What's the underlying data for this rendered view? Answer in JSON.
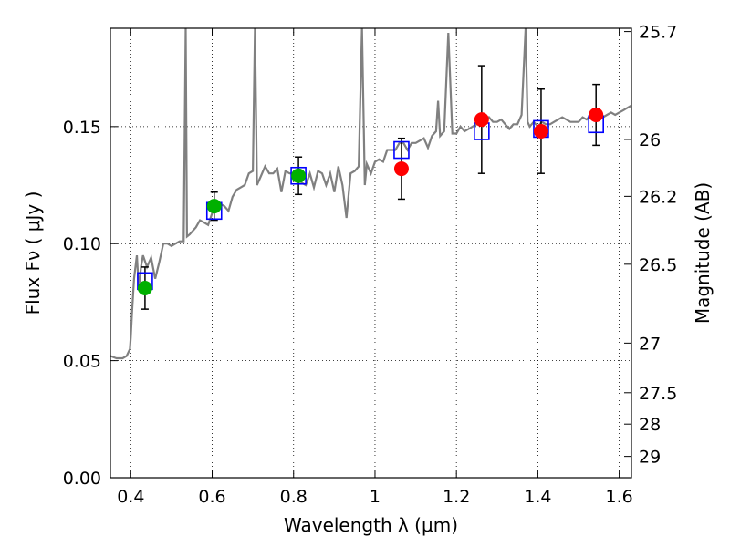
{
  "chart_data": {
    "type": "scatter",
    "title": "",
    "xlabel": "Wavelength  λ (μm)",
    "ylabel": "Flux  Fν  ( μJy )",
    "y2label": "Magnitude (AB)",
    "xlim": [
      0.35,
      1.63
    ],
    "ylim": [
      0.0,
      0.192
    ],
    "xticks": [
      0.4,
      0.6,
      0.8,
      1.0,
      1.2,
      1.4,
      1.6
    ],
    "xtick_labels": [
      "0.4",
      "0.6",
      "0.8",
      "1",
      "1.2",
      "1.4",
      "1.6"
    ],
    "yticks": [
      0.0,
      0.05,
      0.1,
      0.15
    ],
    "ytick_labels": [
      "0.00",
      "0.05",
      "0.10",
      "0.15"
    ],
    "y2ticks": [
      {
        "label": "25.7",
        "flux": 0.1906
      },
      {
        "label": "26",
        "flux": 0.1445
      },
      {
        "label": "26.2",
        "flux": 0.1202
      },
      {
        "label": "26.5",
        "flux": 0.0912
      },
      {
        "label": "27",
        "flux": 0.0575
      },
      {
        "label": "27.5",
        "flux": 0.0363
      },
      {
        "label": "28",
        "flux": 0.0229
      },
      {
        "label": "29",
        "flux": 0.0091
      }
    ],
    "grid": true,
    "colors": {
      "template": "#808080",
      "model": "#0000ff",
      "green": "#00b000",
      "red": "#ff0000",
      "errorbar": "#000000"
    },
    "series": [
      {
        "kind": "line",
        "x": [
          0.35,
          0.365,
          0.38,
          0.39,
          0.398,
          0.4,
          0.403,
          0.408,
          0.415,
          0.42,
          0.425,
          0.43,
          0.44,
          0.45,
          0.46,
          0.47,
          0.48,
          0.49,
          0.5,
          0.51,
          0.52,
          0.53,
          0.535,
          0.538,
          0.545,
          0.55,
          0.56,
          0.57,
          0.58,
          0.59,
          0.6,
          0.61,
          0.62,
          0.63,
          0.64,
          0.65,
          0.66,
          0.67,
          0.68,
          0.69,
          0.7,
          0.705,
          0.71,
          0.72,
          0.73,
          0.74,
          0.75,
          0.76,
          0.77,
          0.78,
          0.79,
          0.8,
          0.81,
          0.82,
          0.83,
          0.84,
          0.85,
          0.86,
          0.87,
          0.88,
          0.89,
          0.9,
          0.91,
          0.92,
          0.93,
          0.94,
          0.95,
          0.96,
          0.968,
          0.975,
          0.98,
          0.99,
          1.0,
          1.01,
          1.02,
          1.03,
          1.04,
          1.05,
          1.06,
          1.07,
          1.08,
          1.09,
          1.1,
          1.11,
          1.12,
          1.13,
          1.14,
          1.15,
          1.155,
          1.16,
          1.17,
          1.18,
          1.19,
          1.2,
          1.21,
          1.22,
          1.23,
          1.24,
          1.25,
          1.26,
          1.27,
          1.28,
          1.29,
          1.3,
          1.31,
          1.32,
          1.33,
          1.34,
          1.35,
          1.36,
          1.37,
          1.375,
          1.38,
          1.39,
          1.4,
          1.41,
          1.42,
          1.43,
          1.44,
          1.45,
          1.46,
          1.47,
          1.48,
          1.49,
          1.5,
          1.51,
          1.52,
          1.53,
          1.54,
          1.55,
          1.56,
          1.57,
          1.58,
          1.59,
          1.6,
          1.61,
          1.62,
          1.63
        ],
        "y": [
          0.052,
          0.051,
          0.051,
          0.052,
          0.055,
          0.06,
          0.07,
          0.085,
          0.095,
          0.08,
          0.09,
          0.095,
          0.09,
          0.094,
          0.085,
          0.092,
          0.1,
          0.1,
          0.099,
          0.1,
          0.101,
          0.101,
          0.192,
          0.103,
          0.104,
          0.105,
          0.107,
          0.11,
          0.109,
          0.108,
          0.113,
          0.116,
          0.117,
          0.116,
          0.114,
          0.12,
          0.123,
          0.124,
          0.125,
          0.13,
          0.131,
          0.192,
          0.125,
          0.129,
          0.133,
          0.13,
          0.13,
          0.132,
          0.122,
          0.131,
          0.13,
          0.13,
          0.13,
          0.126,
          0.125,
          0.13,
          0.124,
          0.131,
          0.13,
          0.125,
          0.13,
          0.122,
          0.133,
          0.125,
          0.111,
          0.13,
          0.131,
          0.133,
          0.192,
          0.125,
          0.134,
          0.13,
          0.135,
          0.136,
          0.135,
          0.14,
          0.14,
          0.14,
          0.143,
          0.143,
          0.14,
          0.143,
          0.143,
          0.144,
          0.145,
          0.141,
          0.146,
          0.148,
          0.161,
          0.146,
          0.148,
          0.19,
          0.147,
          0.147,
          0.15,
          0.148,
          0.149,
          0.15,
          0.151,
          0.151,
          0.152,
          0.154,
          0.152,
          0.152,
          0.153,
          0.151,
          0.149,
          0.151,
          0.151,
          0.155,
          0.192,
          0.152,
          0.15,
          0.152,
          0.15,
          0.152,
          0.151,
          0.151,
          0.152,
          0.153,
          0.154,
          0.153,
          0.152,
          0.152,
          0.152,
          0.154,
          0.153,
          0.155,
          0.155,
          0.154,
          0.154,
          0.155,
          0.156,
          0.155,
          0.156,
          0.157,
          0.158,
          0.159
        ]
      },
      {
        "kind": "marker-square",
        "x": [
          0.435,
          0.605,
          0.812,
          1.065,
          1.262,
          1.408,
          1.543
        ],
        "y": [
          0.084,
          0.114,
          0.129,
          0.14,
          0.148,
          0.149,
          0.151
        ]
      },
      {
        "kind": "marker-circle-green",
        "x": [
          0.435,
          0.605,
          0.812
        ],
        "y": [
          0.081,
          0.116,
          0.129
        ],
        "err": [
          0.009,
          0.006,
          0.008
        ]
      },
      {
        "kind": "marker-circle-red",
        "x": [
          1.065,
          1.262,
          1.408,
          1.543
        ],
        "y": [
          0.132,
          0.153,
          0.148,
          0.155
        ],
        "err": [
          0.013,
          0.023,
          0.018,
          0.013
        ]
      }
    ]
  }
}
